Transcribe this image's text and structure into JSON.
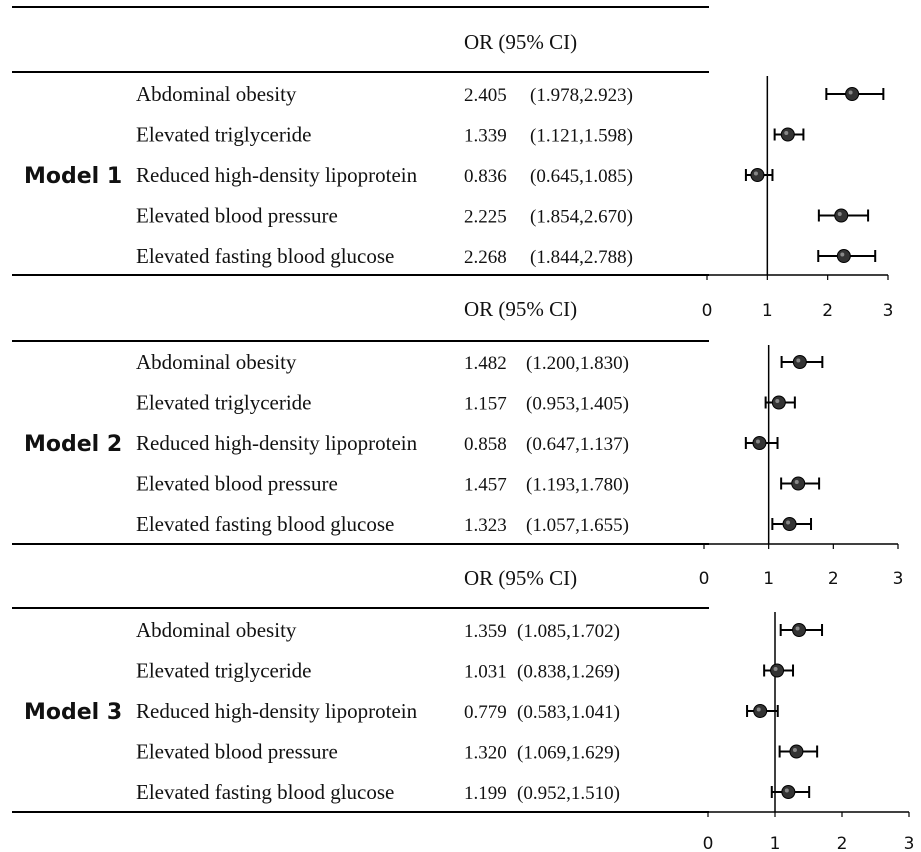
{
  "chart_data": {
    "type": "forest",
    "header_label": "OR (95% CI)",
    "reference_line": 1,
    "panels": [
      {
        "model": "Model 1",
        "xlim": [
          0,
          3
        ],
        "ticks": [
          "0",
          "1",
          "2",
          "3"
        ],
        "rows": [
          {
            "label": "Abdominal obesity",
            "or": 2.405,
            "lo": 1.978,
            "hi": 2.923,
            "or_text": "2.405",
            "ci_text": "(1.978,2.923)"
          },
          {
            "label": "Elevated triglyceride",
            "or": 1.339,
            "lo": 1.121,
            "hi": 1.598,
            "or_text": "1.339",
            "ci_text": "(1.121,1.598)"
          },
          {
            "label": "Reduced high-density lipoprotein",
            "or": 0.836,
            "lo": 0.645,
            "hi": 1.085,
            "or_text": "0.836",
            "ci_text": "(0.645,1.085)"
          },
          {
            "label": "Elevated blood pressure",
            "or": 2.225,
            "lo": 1.854,
            "hi": 2.67,
            "or_text": "2.225",
            "ci_text": "(1.854,2.670)"
          },
          {
            "label": "Elevated fasting blood glucose",
            "or": 2.268,
            "lo": 1.844,
            "hi": 2.788,
            "or_text": "2.268",
            "ci_text": "(1.844,2.788)"
          }
        ]
      },
      {
        "model": "Model 2",
        "xlim": [
          0,
          3
        ],
        "ticks": [
          "0",
          "1",
          "2",
          "3"
        ],
        "rows": [
          {
            "label": "Abdominal obesity",
            "or": 1.482,
            "lo": 1.2,
            "hi": 1.83,
            "or_text": "1.482",
            "ci_text": "(1.200,1.830)"
          },
          {
            "label": "Elevated triglyceride",
            "or": 1.157,
            "lo": 0.953,
            "hi": 1.405,
            "or_text": "1.157",
            "ci_text": "(0.953,1.405)"
          },
          {
            "label": "Reduced high-density lipoprotein",
            "or": 0.858,
            "lo": 0.647,
            "hi": 1.137,
            "or_text": "0.858",
            "ci_text": "(0.647,1.137)"
          },
          {
            "label": "Elevated blood pressure",
            "or": 1.457,
            "lo": 1.193,
            "hi": 1.78,
            "or_text": "1.457",
            "ci_text": "(1.193,1.780)"
          },
          {
            "label": "Elevated fasting blood glucose",
            "or": 1.323,
            "lo": 1.057,
            "hi": 1.655,
            "or_text": "1.323",
            "ci_text": "(1.057,1.655)"
          }
        ]
      },
      {
        "model": "Model 3",
        "xlim": [
          0,
          3
        ],
        "ticks": [
          "0",
          "1",
          "2",
          "3"
        ],
        "rows": [
          {
            "label": "Abdominal obesity",
            "or": 1.359,
            "lo": 1.085,
            "hi": 1.702,
            "or_text": "1.359",
            "ci_text": "(1.085,1.702)"
          },
          {
            "label": "Elevated triglyceride",
            "or": 1.031,
            "lo": 0.838,
            "hi": 1.269,
            "or_text": "1.031",
            "ci_text": "(0.838,1.269)"
          },
          {
            "label": "Reduced high-density lipoprotein",
            "or": 0.779,
            "lo": 0.583,
            "hi": 1.041,
            "or_text": "0.779",
            "ci_text": "(0.583,1.041)"
          },
          {
            "label": "Elevated blood pressure",
            "or": 1.32,
            "lo": 1.069,
            "hi": 1.629,
            "or_text": "1.320",
            "ci_text": "(1.069,1.629)"
          },
          {
            "label": "Elevated fasting blood glucose",
            "or": 1.199,
            "lo": 0.952,
            "hi": 1.51,
            "or_text": "1.199",
            "ci_text": "(0.952,1.510)"
          }
        ]
      }
    ]
  }
}
